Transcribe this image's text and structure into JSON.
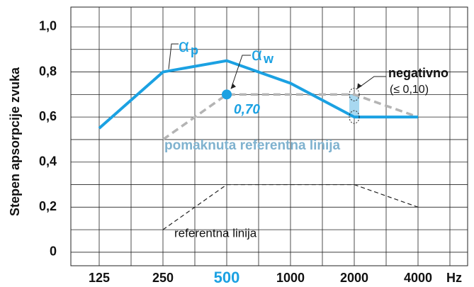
{
  "chart_data": {
    "type": "line",
    "ylabel": "Stepen apsorpcije zvuka",
    "x_unit": "Hz",
    "categories": [
      "125",
      "250",
      "500",
      "1000",
      "2000",
      "4000"
    ],
    "highlight_index": 2,
    "series": [
      {
        "name": "α",
        "subscript": "p",
        "color": "#1ba1e2",
        "style": "solid",
        "values": [
          0.55,
          0.8,
          0.85,
          0.75,
          0.6,
          0.6
        ]
      },
      {
        "name": "pomaknuta referentna linija",
        "color": "#b4b4b4",
        "label_color": "#7fb2cf",
        "style": "dashed",
        "values": [
          null,
          0.5,
          0.7,
          0.7,
          0.7,
          0.6
        ]
      },
      {
        "name": "referentna linija",
        "color": "#222222",
        "style": "thin-dashed",
        "values": [
          null,
          0.1,
          0.3,
          0.3,
          0.3,
          0.2
        ]
      }
    ],
    "alpha_w": {
      "symbol": "α",
      "subscript": "w",
      "value": 0.7,
      "label": "0,70",
      "category_index": 2
    },
    "deficit": {
      "text": "negativno",
      "subtext": "(≤ 0,10)",
      "category_index": 4
    },
    "ylim": [
      -0.06,
      1.088
    ],
    "yticks": [
      0,
      {
        "value": 0.2,
        "label": "0,2"
      },
      {
        "value": 0.4,
        "label": "0,4"
      },
      {
        "value": 0.6,
        "label": "0,6"
      },
      {
        "value": 0.8,
        "label": "0,8"
      },
      {
        "value": 1.0,
        "label": "1,0"
      }
    ],
    "minor_yticks": [
      0.1,
      0.3,
      0.5,
      0.7,
      0.9
    ],
    "grid": true
  }
}
